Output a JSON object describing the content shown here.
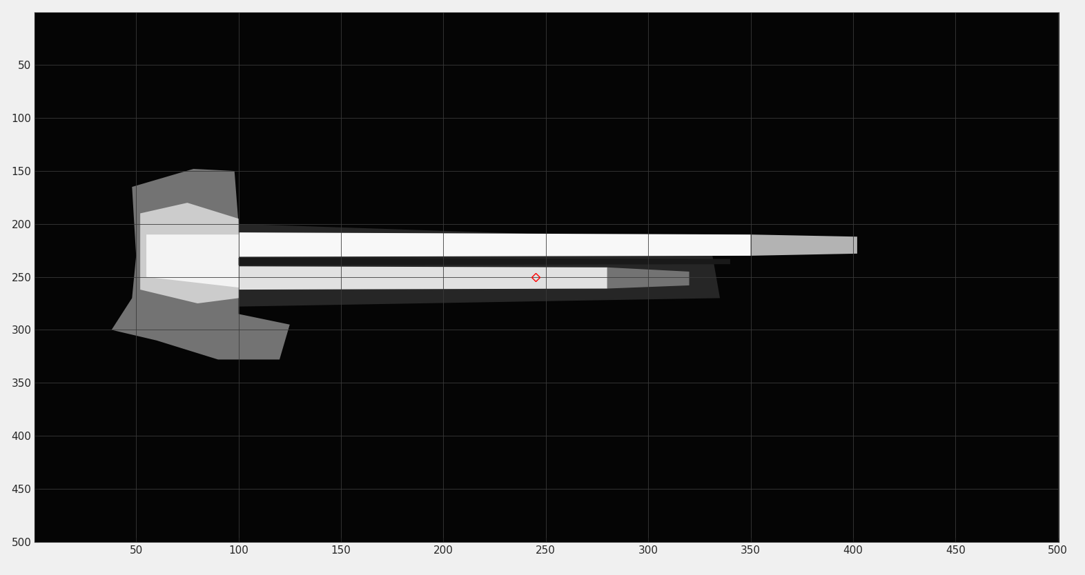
{
  "chart_data": {
    "type": "image",
    "xlim": [
      0.5,
      500.5
    ],
    "ylim": [
      500.5,
      0.5
    ],
    "xticks": [
      50,
      100,
      150,
      200,
      250,
      300,
      350,
      400,
      450,
      500
    ],
    "yticks": [
      50,
      100,
      150,
      200,
      250,
      300,
      350,
      400,
      450,
      500
    ],
    "grid": true,
    "background": 0.02,
    "regions": [
      {
        "points": [
          [
            100,
            200
          ],
          [
            330,
            215
          ],
          [
            335,
            270
          ],
          [
            100,
            278
          ]
        ],
        "value": 0.15
      },
      {
        "points": [
          [
            48,
            165
          ],
          [
            78,
            148
          ],
          [
            98,
            150
          ],
          [
            100,
            200
          ],
          [
            100,
            285
          ],
          [
            125,
            295
          ],
          [
            120,
            328
          ],
          [
            90,
            328
          ],
          [
            60,
            310
          ],
          [
            38,
            300
          ],
          [
            48,
            270
          ],
          [
            50,
            230
          ]
        ],
        "value": 0.45
      },
      {
        "points": [
          [
            52,
            190
          ],
          [
            75,
            180
          ],
          [
            100,
            195
          ],
          [
            100,
            270
          ],
          [
            80,
            275
          ],
          [
            52,
            262
          ]
        ],
        "value": 0.8
      },
      {
        "points": [
          [
            55,
            210
          ],
          [
            100,
            210
          ],
          [
            100,
            260
          ],
          [
            55,
            250
          ]
        ],
        "value": 0.95
      },
      {
        "points": [
          [
            100,
            208
          ],
          [
            350,
            210
          ],
          [
            350,
            230
          ],
          [
            100,
            231
          ]
        ],
        "value": 0.97
      },
      {
        "points": [
          [
            350,
            210
          ],
          [
            402,
            212
          ],
          [
            402,
            228
          ],
          [
            350,
            230
          ]
        ],
        "value": 0.7
      },
      {
        "points": [
          [
            100,
            232
          ],
          [
            340,
            233
          ],
          [
            340,
            238
          ],
          [
            100,
            239
          ]
        ],
        "value": 0.1
      },
      {
        "points": [
          [
            100,
            240
          ],
          [
            280,
            241
          ],
          [
            280,
            261
          ],
          [
            100,
            262
          ]
        ],
        "value": 0.88
      },
      {
        "points": [
          [
            280,
            241
          ],
          [
            320,
            245
          ],
          [
            320,
            258
          ],
          [
            280,
            261
          ]
        ],
        "value": 0.45
      }
    ],
    "series": [
      {
        "x": [
          245
        ],
        "values": [
          250
        ],
        "color": "#ff0000",
        "marker": "diamond"
      }
    ]
  }
}
